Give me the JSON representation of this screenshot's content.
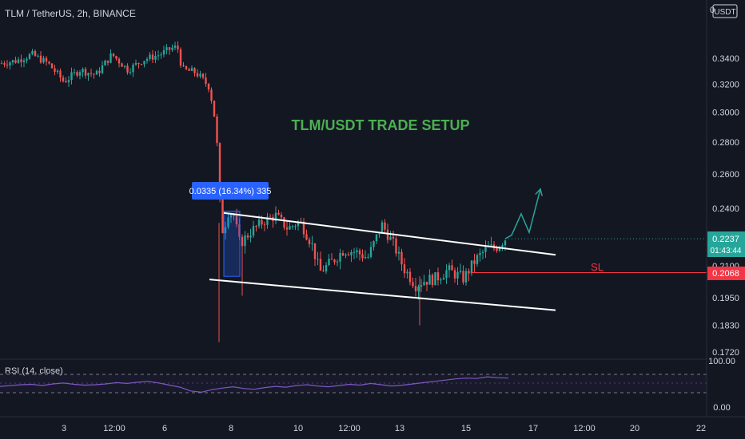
{
  "header": {
    "symbol_line": "TLM / TetherUS, 2h, BINANCE"
  },
  "currency_label": "USDT",
  "title_annotation": "TLM/USDT TRADE SETUP",
  "measure_label": "0.0335 (16.34%) 335",
  "sl_label": "SL",
  "sl_price": "0.2068",
  "current_price": {
    "price": "0.2237",
    "countdown": "01:43:44"
  },
  "colors": {
    "background": "#131722",
    "up_candle": "#26a69a",
    "down_candle": "#ef5350",
    "title_green": "#4caf50",
    "sl_red": "#f23645",
    "measure_blue": "#2962ff",
    "rsi_line": "#7e57c2",
    "channel_white": "#ffffff"
  },
  "rsi": {
    "label": "RSI (14, close)",
    "ticks": [
      "100.00",
      "0.00"
    ]
  },
  "chart_data": {
    "type": "candlestick",
    "y_ticks": [
      "0.3400",
      "0.3200",
      "0.3000",
      "0.2800",
      "0.2600",
      "0.2400",
      "0.2100",
      "0.1950",
      "0.1830",
      "0.1720"
    ],
    "x_ticks": [
      "3",
      "12:00",
      "6",
      "8",
      "10",
      "12:00",
      "13",
      "15",
      "17",
      "12:00",
      "20",
      "22"
    ],
    "ylim": [
      0.172,
      0.36
    ],
    "y_scale": "log",
    "grid": false,
    "price_path": [
      [
        0,
        0.336
      ],
      [
        20,
        0.338
      ],
      [
        40,
        0.343
      ],
      [
        60,
        0.336
      ],
      [
        80,
        0.322
      ],
      [
        100,
        0.331
      ],
      [
        120,
        0.327
      ],
      [
        140,
        0.343
      ],
      [
        160,
        0.331
      ],
      [
        180,
        0.339
      ],
      [
        200,
        0.343
      ],
      [
        215,
        0.348
      ],
      [
        222,
        0.349
      ],
      [
        228,
        0.331
      ],
      [
        245,
        0.329
      ],
      [
        262,
        0.318
      ],
      [
        268,
        0.298
      ],
      [
        272,
        0.275
      ],
      [
        276,
        0.232
      ],
      [
        280,
        0.226
      ],
      [
        284,
        0.238
      ],
      [
        292,
        0.237
      ],
      [
        300,
        0.221
      ],
      [
        315,
        0.228
      ],
      [
        330,
        0.233
      ],
      [
        345,
        0.236
      ],
      [
        360,
        0.229
      ],
      [
        375,
        0.233
      ],
      [
        390,
        0.221
      ],
      [
        400,
        0.207
      ],
      [
        415,
        0.212
      ],
      [
        430,
        0.218
      ],
      [
        445,
        0.217
      ],
      [
        460,
        0.214
      ],
      [
        478,
        0.231
      ],
      [
        492,
        0.221
      ],
      [
        505,
        0.209
      ],
      [
        520,
        0.201
      ],
      [
        530,
        0.203
      ],
      [
        545,
        0.204
      ],
      [
        560,
        0.208
      ],
      [
        580,
        0.204
      ],
      [
        595,
        0.213
      ],
      [
        610,
        0.219
      ],
      [
        620,
        0.219
      ],
      [
        632,
        0.2237
      ]
    ],
    "channel": {
      "upper": [
        [
          280,
          0.2375
        ],
        [
          695,
          0.2155
        ]
      ],
      "lower": [
        [
          262,
          0.2035
        ],
        [
          695,
          0.1895
        ]
      ]
    },
    "projection": [
      [
        632,
        0.2237
      ],
      [
        640,
        0.2255
      ],
      [
        652,
        0.237
      ],
      [
        662,
        0.227
      ],
      [
        676,
        0.251
      ]
    ],
    "measure_range": {
      "x_from": 280,
      "x_to": 300,
      "y_from": 0.205,
      "y_to": 0.2385
    },
    "sl_level": {
      "price": 0.2068,
      "x_from": 590
    },
    "rsi_series": [
      46,
      48,
      50,
      51,
      48,
      52,
      54,
      51,
      49,
      50,
      52,
      55,
      53,
      56,
      58,
      54,
      49,
      44,
      35,
      32,
      38,
      42,
      45,
      41,
      39,
      43,
      46,
      44,
      48,
      50,
      47,
      45,
      48,
      51,
      49,
      53,
      50,
      47,
      49,
      52,
      55,
      58,
      61,
      64,
      66,
      65,
      69,
      67,
      66
    ]
  }
}
